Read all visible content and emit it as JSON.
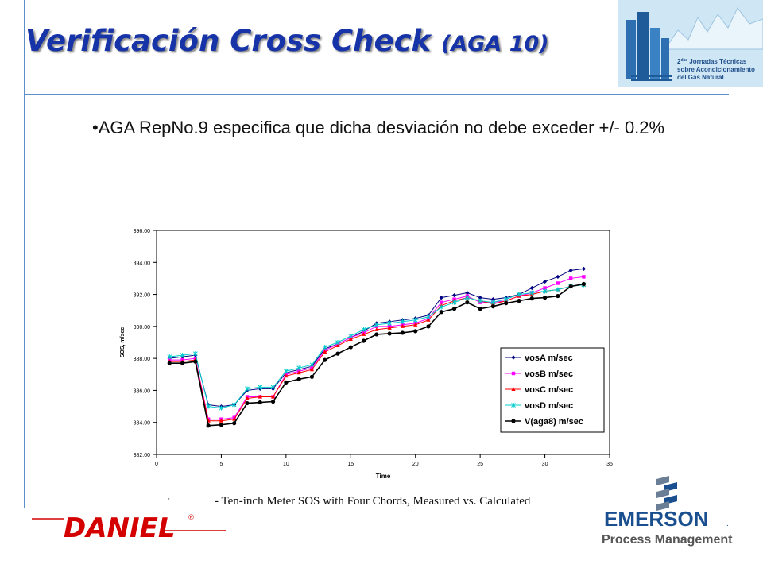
{
  "slide": {
    "title_main": "Verificación Cross Check",
    "title_paren": "(AGA 10)",
    "bullet": "•AGA RepNo.9 especifica que dicha desviación no debe exceder +/- 0.2%",
    "caption": "- Ten-inch Meter SOS with Four Chords, Measured vs. Calculated",
    "caption_mark": "'"
  },
  "logos": {
    "conference_line1": "2",
    "conference_sup": "das",
    "conference_line1b": " Jornadas Técnicas",
    "conference_line2": "sobre Acondicionamiento",
    "conference_line3": "del Gas Natural",
    "daniel_text": "DANIEL",
    "daniel_reg": "®",
    "emerson_text": "EMERSON",
    "emerson_tm": ".",
    "emerson_sub": "Process Management",
    "colors": {
      "title": "#1633a8",
      "daniel": "#d40000",
      "emerson_text": "#1a4f8f",
      "emerson_sub": "#555555"
    }
  },
  "chart_data": {
    "type": "line",
    "title": "",
    "xlabel": "Time",
    "ylabel": "SOS, m/sec",
    "xlim": [
      0,
      35
    ],
    "ylim": [
      382,
      396
    ],
    "xticks": [
      "0",
      "5",
      "10",
      "15",
      "20",
      "25",
      "30",
      "35"
    ],
    "yticks": [
      "382.00",
      "384.00",
      "386.00",
      "388.00",
      "390.00",
      "392.00",
      "394.00",
      "396.00"
    ],
    "legend_position": "lower-right",
    "x": [
      1,
      2,
      3,
      4,
      5,
      6,
      7,
      8,
      9,
      10,
      11,
      12,
      13,
      14,
      15,
      16,
      17,
      18,
      19,
      20,
      21,
      22,
      23,
      24,
      25,
      26,
      27,
      28,
      29,
      30,
      31,
      32,
      33
    ],
    "series": [
      {
        "name": "vosA m/sec",
        "color": "#000080",
        "marker": "diamond",
        "values": [
          388.0,
          388.1,
          388.2,
          385.1,
          385.0,
          385.1,
          386.0,
          386.1,
          386.1,
          387.1,
          387.3,
          387.5,
          388.6,
          388.9,
          389.3,
          389.7,
          390.2,
          390.3,
          390.4,
          390.5,
          390.7,
          391.8,
          391.95,
          392.1,
          391.8,
          391.7,
          391.8,
          392.0,
          392.4,
          392.8,
          393.1,
          393.5,
          393.6
        ]
      },
      {
        "name": "vosB m/sec",
        "color": "#ff00ff",
        "marker": "square",
        "values": [
          387.9,
          387.9,
          388.0,
          384.2,
          384.2,
          384.3,
          385.6,
          385.6,
          385.6,
          387.0,
          387.2,
          387.4,
          388.5,
          388.9,
          389.3,
          389.6,
          390.0,
          390.0,
          390.1,
          390.2,
          390.5,
          391.5,
          391.7,
          391.9,
          391.5,
          391.5,
          391.6,
          391.9,
          392.1,
          392.4,
          392.7,
          393.0,
          393.1
        ]
      },
      {
        "name": "vosC m/sec",
        "color": "#ff0000",
        "marker": "triangle",
        "values": [
          387.8,
          387.8,
          387.9,
          384.1,
          384.1,
          384.2,
          385.5,
          385.6,
          385.6,
          386.9,
          387.1,
          387.3,
          388.4,
          388.8,
          389.2,
          389.5,
          389.8,
          389.9,
          390.0,
          390.1,
          390.4,
          391.3,
          391.6,
          391.8,
          391.6,
          391.4,
          391.6,
          391.9,
          392.0,
          392.2,
          392.3,
          392.5,
          392.6
        ]
      },
      {
        "name": "vosD m/sec",
        "color": "#00cccc",
        "marker": "star",
        "values": [
          388.1,
          388.2,
          388.3,
          385.0,
          384.9,
          385.1,
          386.1,
          386.2,
          386.2,
          387.2,
          387.4,
          387.6,
          388.7,
          389.0,
          389.4,
          389.8,
          390.1,
          390.2,
          390.3,
          390.4,
          390.6,
          391.2,
          391.5,
          391.8,
          391.6,
          391.5,
          391.7,
          392.0,
          392.1,
          392.2,
          392.3,
          392.5,
          392.6
        ]
      },
      {
        "name": "V(aga8) m/sec",
        "color": "#000000",
        "marker": "circle",
        "values": [
          387.7,
          387.7,
          387.8,
          383.8,
          383.85,
          383.95,
          385.2,
          385.25,
          385.3,
          386.5,
          386.7,
          386.85,
          387.9,
          388.3,
          388.7,
          389.1,
          389.5,
          389.55,
          389.6,
          389.7,
          390.0,
          390.9,
          391.1,
          391.5,
          391.1,
          391.25,
          391.45,
          391.6,
          391.75,
          391.8,
          391.9,
          392.5,
          392.65
        ]
      }
    ]
  }
}
